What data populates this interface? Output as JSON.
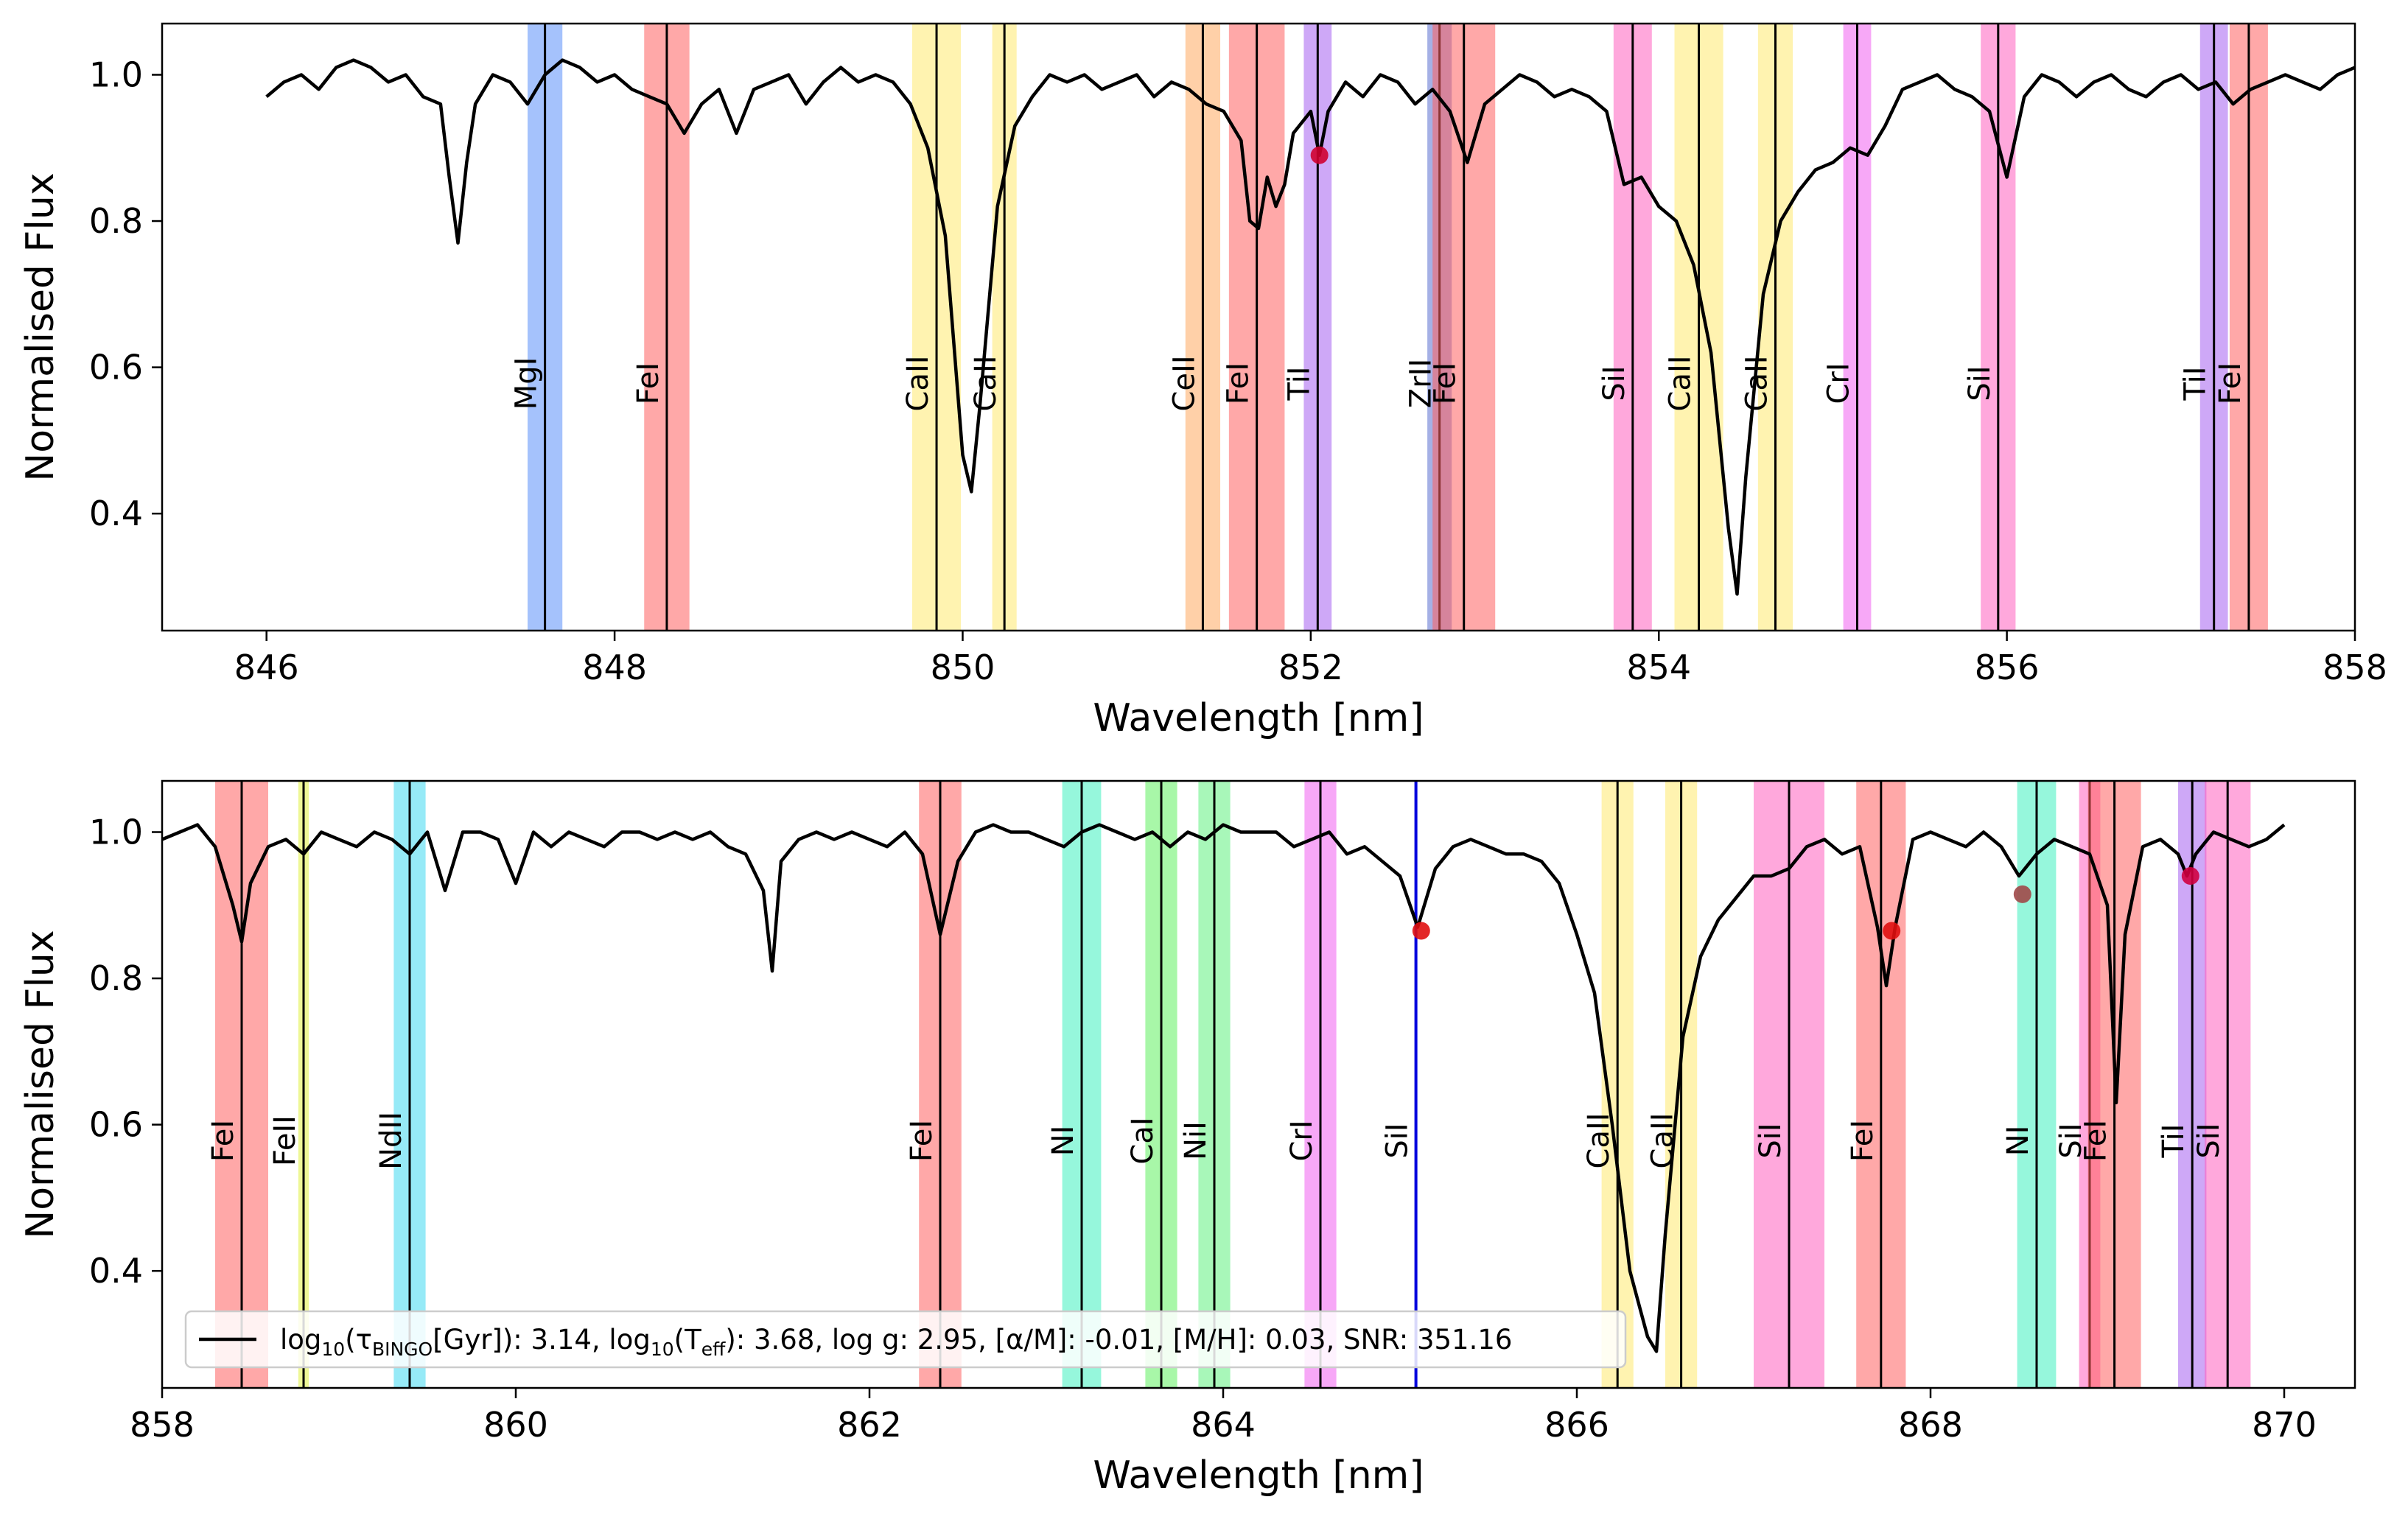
{
  "chart_data": [
    {
      "type": "line",
      "xlabel": "Wavelength [nm]",
      "ylabel": "Normalised Flux",
      "xlim": [
        845.4,
        858.0
      ],
      "ylim": [
        0.24,
        1.07
      ],
      "xticks": [
        846,
        848,
        850,
        852,
        854,
        856,
        858
      ],
      "yticks": [
        0.4,
        0.6,
        0.8,
        1.0
      ],
      "xtick_labels": [
        "846",
        "848",
        "850",
        "852",
        "854",
        "856",
        "858"
      ],
      "ytick_labels": [
        "0.4",
        "0.6",
        "0.8",
        "1.0"
      ],
      "grid": false,
      "series": [
        {
          "color": "#000000",
          "x": [
            846.0,
            846.1,
            846.2,
            846.3,
            846.4,
            846.5,
            846.6,
            846.7,
            846.8,
            846.9,
            847.0,
            847.05,
            847.1,
            847.15,
            847.2,
            847.3,
            847.4,
            847.5,
            847.6,
            847.7,
            847.8,
            847.9,
            848.0,
            848.1,
            848.2,
            848.3,
            848.4,
            848.5,
            848.6,
            848.7,
            848.8,
            848.9,
            849.0,
            849.1,
            849.2,
            849.3,
            849.4,
            849.5,
            849.6,
            849.7,
            849.8,
            849.9,
            850.0,
            850.05,
            850.1,
            850.2,
            850.3,
            850.4,
            850.5,
            850.6,
            850.7,
            850.8,
            850.9,
            851.0,
            851.1,
            851.2,
            851.3,
            851.4,
            851.5,
            851.6,
            851.65,
            851.7,
            851.75,
            851.8,
            851.85,
            851.9,
            852.0,
            852.05,
            852.1,
            852.2,
            852.3,
            852.4,
            852.5,
            852.6,
            852.7,
            852.8,
            852.9,
            853.0,
            853.1,
            853.2,
            853.3,
            853.4,
            853.5,
            853.6,
            853.7,
            853.8,
            853.9,
            854.0,
            854.1,
            854.2,
            854.3,
            854.4,
            854.45,
            854.5,
            854.6,
            854.7,
            854.8,
            854.9,
            855.0,
            855.1,
            855.2,
            855.3,
            855.4,
            855.5,
            855.6,
            855.7,
            855.8,
            855.9,
            856.0,
            856.1,
            856.2,
            856.3,
            856.4,
            856.5,
            856.6,
            856.7,
            856.8,
            856.9,
            857.0,
            857.1,
            857.2,
            857.3,
            857.4,
            857.5,
            857.6,
            857.7,
            857.8,
            857.9,
            858.0
          ],
          "y": [
            0.97,
            0.99,
            1.0,
            0.98,
            1.01,
            1.02,
            1.01,
            0.99,
            1.0,
            0.97,
            0.96,
            0.86,
            0.77,
            0.88,
            0.96,
            1.0,
            0.99,
            0.96,
            1.0,
            1.02,
            1.01,
            0.99,
            1.0,
            0.98,
            0.97,
            0.96,
            0.92,
            0.96,
            0.98,
            0.92,
            0.98,
            0.99,
            1.0,
            0.96,
            0.99,
            1.01,
            0.99,
            1.0,
            0.99,
            0.96,
            0.9,
            0.78,
            0.48,
            0.43,
            0.55,
            0.82,
            0.93,
            0.97,
            1.0,
            0.99,
            1.0,
            0.98,
            0.99,
            1.0,
            0.97,
            0.99,
            0.98,
            0.96,
            0.95,
            0.91,
            0.8,
            0.79,
            0.86,
            0.82,
            0.85,
            0.92,
            0.95,
            0.89,
            0.95,
            0.99,
            0.97,
            1.0,
            0.99,
            0.96,
            0.98,
            0.95,
            0.88,
            0.96,
            0.98,
            1.0,
            0.99,
            0.97,
            0.98,
            0.97,
            0.95,
            0.85,
            0.86,
            0.82,
            0.8,
            0.74,
            0.62,
            0.38,
            0.29,
            0.45,
            0.7,
            0.8,
            0.84,
            0.87,
            0.88,
            0.9,
            0.89,
            0.93,
            0.98,
            0.99,
            1.0,
            0.98,
            0.97,
            0.95,
            0.86,
            0.97,
            1.0,
            0.99,
            0.97,
            0.99,
            1.0,
            0.98,
            0.97,
            0.99,
            1.0,
            0.98,
            0.99,
            0.96,
            0.98,
            0.99,
            1.0,
            0.99,
            0.98,
            1.0,
            1.01
          ]
        }
      ],
      "bands": [
        {
          "center": 847.6,
          "width": 0.2,
          "color": "#5b8ff9",
          "label": "MgI"
        },
        {
          "center": 848.3,
          "width": 0.26,
          "color": "#ff6060",
          "label": "FeI"
        },
        {
          "center": 849.85,
          "width": 0.28,
          "color": "#ffea70",
          "label": "CaII"
        },
        {
          "center": 850.24,
          "width": 0.14,
          "color": "#ffea70",
          "label": "CaII"
        },
        {
          "center": 851.38,
          "width": 0.2,
          "color": "#ffaa60",
          "label": "CeII"
        },
        {
          "center": 851.69,
          "width": 0.32,
          "color": "#ff6060",
          "label": "FeI"
        },
        {
          "center": 852.04,
          "width": 0.16,
          "color": "#a560f0",
          "label": "TiI"
        },
        {
          "center": 852.74,
          "width": 0.14,
          "color": "#5b6fd0",
          "label": "ZrII"
        },
        {
          "center": 852.88,
          "width": 0.36,
          "color": "#ff6060",
          "label": "FeI"
        },
        {
          "center": 853.85,
          "width": 0.22,
          "color": "#ff60c0",
          "label": "SiI"
        },
        {
          "center": 854.23,
          "width": 0.28,
          "color": "#ffea70",
          "label": "CaII"
        },
        {
          "center": 854.67,
          "width": 0.2,
          "color": "#ffea70",
          "label": "CaII"
        },
        {
          "center": 855.14,
          "width": 0.16,
          "color": "#f060f0",
          "label": "CrI"
        },
        {
          "center": 855.95,
          "width": 0.2,
          "color": "#ff60c0",
          "label": "SiI"
        },
        {
          "center": 857.19,
          "width": 0.16,
          "color": "#a560f0",
          "label": "TiI"
        },
        {
          "center": 857.39,
          "width": 0.22,
          "color": "#ff6060",
          "label": "FeI"
        }
      ],
      "markers": [
        {
          "x": 852.05,
          "y": 0.89,
          "color": "#d00030"
        }
      ]
    },
    {
      "type": "line",
      "xlabel": "Wavelength [nm]",
      "ylabel": "Normalised Flux",
      "xlim": [
        858.0,
        870.4
      ],
      "ylim": [
        0.24,
        1.07
      ],
      "xticks": [
        858,
        860,
        862,
        864,
        866,
        868,
        870
      ],
      "yticks": [
        0.4,
        0.6,
        0.8,
        1.0
      ],
      "xtick_labels": [
        "858",
        "860",
        "862",
        "864",
        "866",
        "868",
        "870"
      ],
      "ytick_labels": [
        "0.4",
        "0.6",
        "0.8",
        "1.0"
      ],
      "grid": false,
      "series": [
        {
          "color": "#000000",
          "x": [
            858.0,
            858.1,
            858.2,
            858.3,
            858.4,
            858.45,
            858.5,
            858.6,
            858.7,
            858.8,
            858.9,
            859.0,
            859.1,
            859.2,
            859.3,
            859.4,
            859.5,
            859.6,
            859.7,
            859.8,
            859.9,
            860.0,
            860.1,
            860.2,
            860.3,
            860.4,
            860.5,
            860.6,
            860.7,
            860.8,
            860.9,
            861.0,
            861.1,
            861.2,
            861.3,
            861.4,
            861.45,
            861.5,
            861.6,
            861.7,
            861.8,
            861.9,
            862.0,
            862.1,
            862.2,
            862.3,
            862.4,
            862.5,
            862.6,
            862.7,
            862.8,
            862.9,
            863.0,
            863.1,
            863.2,
            863.3,
            863.4,
            863.5,
            863.6,
            863.7,
            863.8,
            863.9,
            864.0,
            864.1,
            864.2,
            864.3,
            864.4,
            864.5,
            864.6,
            864.7,
            864.8,
            864.9,
            865.0,
            865.1,
            865.2,
            865.3,
            865.4,
            865.5,
            865.6,
            865.7,
            865.8,
            865.9,
            866.0,
            866.1,
            866.2,
            866.3,
            866.4,
            866.45,
            866.5,
            866.6,
            866.7,
            866.8,
            866.9,
            867.0,
            867.1,
            867.2,
            867.3,
            867.4,
            867.5,
            867.6,
            867.7,
            867.75,
            867.8,
            867.9,
            868.0,
            868.1,
            868.2,
            868.3,
            868.4,
            868.5,
            868.6,
            868.7,
            868.8,
            868.9,
            869.0,
            869.05,
            869.1,
            869.2,
            869.3,
            869.4,
            869.45,
            869.5,
            869.6,
            869.7,
            869.8,
            869.9,
            870.0
          ],
          "y": [
            0.99,
            1.0,
            1.01,
            0.98,
            0.9,
            0.85,
            0.93,
            0.98,
            0.99,
            0.97,
            1.0,
            0.99,
            0.98,
            1.0,
            0.99,
            0.97,
            1.0,
            0.92,
            1.0,
            1.0,
            0.99,
            0.93,
            1.0,
            0.98,
            1.0,
            0.99,
            0.98,
            1.0,
            1.0,
            0.99,
            1.0,
            0.99,
            1.0,
            0.98,
            0.97,
            0.92,
            0.81,
            0.96,
            0.99,
            1.0,
            0.99,
            1.0,
            0.99,
            0.98,
            1.0,
            0.97,
            0.86,
            0.96,
            1.0,
            1.01,
            1.0,
            1.0,
            0.99,
            0.98,
            1.0,
            1.01,
            1.0,
            0.99,
            1.0,
            0.98,
            1.0,
            0.99,
            1.01,
            1.0,
            1.0,
            1.0,
            0.98,
            0.99,
            1.0,
            0.97,
            0.98,
            0.96,
            0.94,
            0.87,
            0.95,
            0.98,
            0.99,
            0.98,
            0.97,
            0.97,
            0.96,
            0.93,
            0.86,
            0.78,
            0.6,
            0.4,
            0.31,
            0.29,
            0.45,
            0.72,
            0.83,
            0.88,
            0.91,
            0.94,
            0.94,
            0.95,
            0.98,
            0.99,
            0.97,
            0.98,
            0.87,
            0.79,
            0.87,
            0.99,
            1.0,
            0.99,
            0.98,
            1.0,
            0.98,
            0.94,
            0.97,
            0.99,
            0.98,
            0.97,
            0.9,
            0.63,
            0.86,
            0.98,
            0.99,
            0.97,
            0.94,
            0.97,
            1.0,
            0.99,
            0.98,
            0.99,
            1.01
          ]
        }
      ],
      "bands": [
        {
          "center": 858.45,
          "width": 0.3,
          "color": "#ff6060",
          "label": "FeI"
        },
        {
          "center": 858.8,
          "width": 0.06,
          "color": "#e0f040",
          "label": "FeII"
        },
        {
          "center": 859.4,
          "width": 0.18,
          "color": "#40d8f0",
          "label": "NdII"
        },
        {
          "center": 862.4,
          "width": 0.24,
          "color": "#ff6060",
          "label": "FeI"
        },
        {
          "center": 863.2,
          "width": 0.22,
          "color": "#40f0c0",
          "label": "NI"
        },
        {
          "center": 863.65,
          "width": 0.18,
          "color": "#60f060",
          "label": "CaI"
        },
        {
          "center": 863.95,
          "width": 0.18,
          "color": "#60f080",
          "label": "NiI"
        },
        {
          "center": 864.55,
          "width": 0.18,
          "color": "#f060f0",
          "label": "CrI"
        },
        {
          "center": 865.09,
          "width": 0.0,
          "color": "#0000dd",
          "label": "SiI"
        },
        {
          "center": 866.23,
          "width": 0.18,
          "color": "#ffea70",
          "label": "CaII"
        },
        {
          "center": 866.59,
          "width": 0.18,
          "color": "#ffea70",
          "label": "CaII"
        },
        {
          "center": 867.2,
          "width": 0.4,
          "color": "#ff60c0",
          "label": "SiI"
        },
        {
          "center": 867.72,
          "width": 0.28,
          "color": "#ff6060",
          "label": "FeI"
        },
        {
          "center": 868.6,
          "width": 0.22,
          "color": "#40f0c0",
          "label": "NI"
        },
        {
          "center": 868.9,
          "width": 0.12,
          "color": "#ff60c0",
          "label": "SiI"
        },
        {
          "center": 869.04,
          "width": 0.3,
          "color": "#ff6060",
          "label": "FeI"
        },
        {
          "center": 869.48,
          "width": 0.16,
          "color": "#a560f0",
          "label": "TiI"
        },
        {
          "center": 869.68,
          "width": 0.26,
          "color": "#ff60c0",
          "label": "SiI"
        }
      ],
      "markers": [
        {
          "x": 865.12,
          "y": 0.865,
          "color": "#e01010"
        },
        {
          "x": 867.78,
          "y": 0.865,
          "color": "#e01010"
        },
        {
          "x": 868.52,
          "y": 0.915,
          "color": "#a04848"
        },
        {
          "x": 869.47,
          "y": 0.94,
          "color": "#d00040"
        }
      ],
      "legend": {
        "placement": "lower-left",
        "entries": [
          {
            "prefix": "log",
            "sub1": "10",
            "mid1": "(τ",
            "sub2": "BINGO",
            "mid2": "[Gyr]): 3.14, log",
            "sub3": "10",
            "mid3": "(T",
            "sub4": "eff",
            "rest": "): 3.68, log g: 2.95, [α/M]: -0.01, [M/H]: 0.03,  SNR: 351.16"
          }
        ]
      }
    }
  ]
}
